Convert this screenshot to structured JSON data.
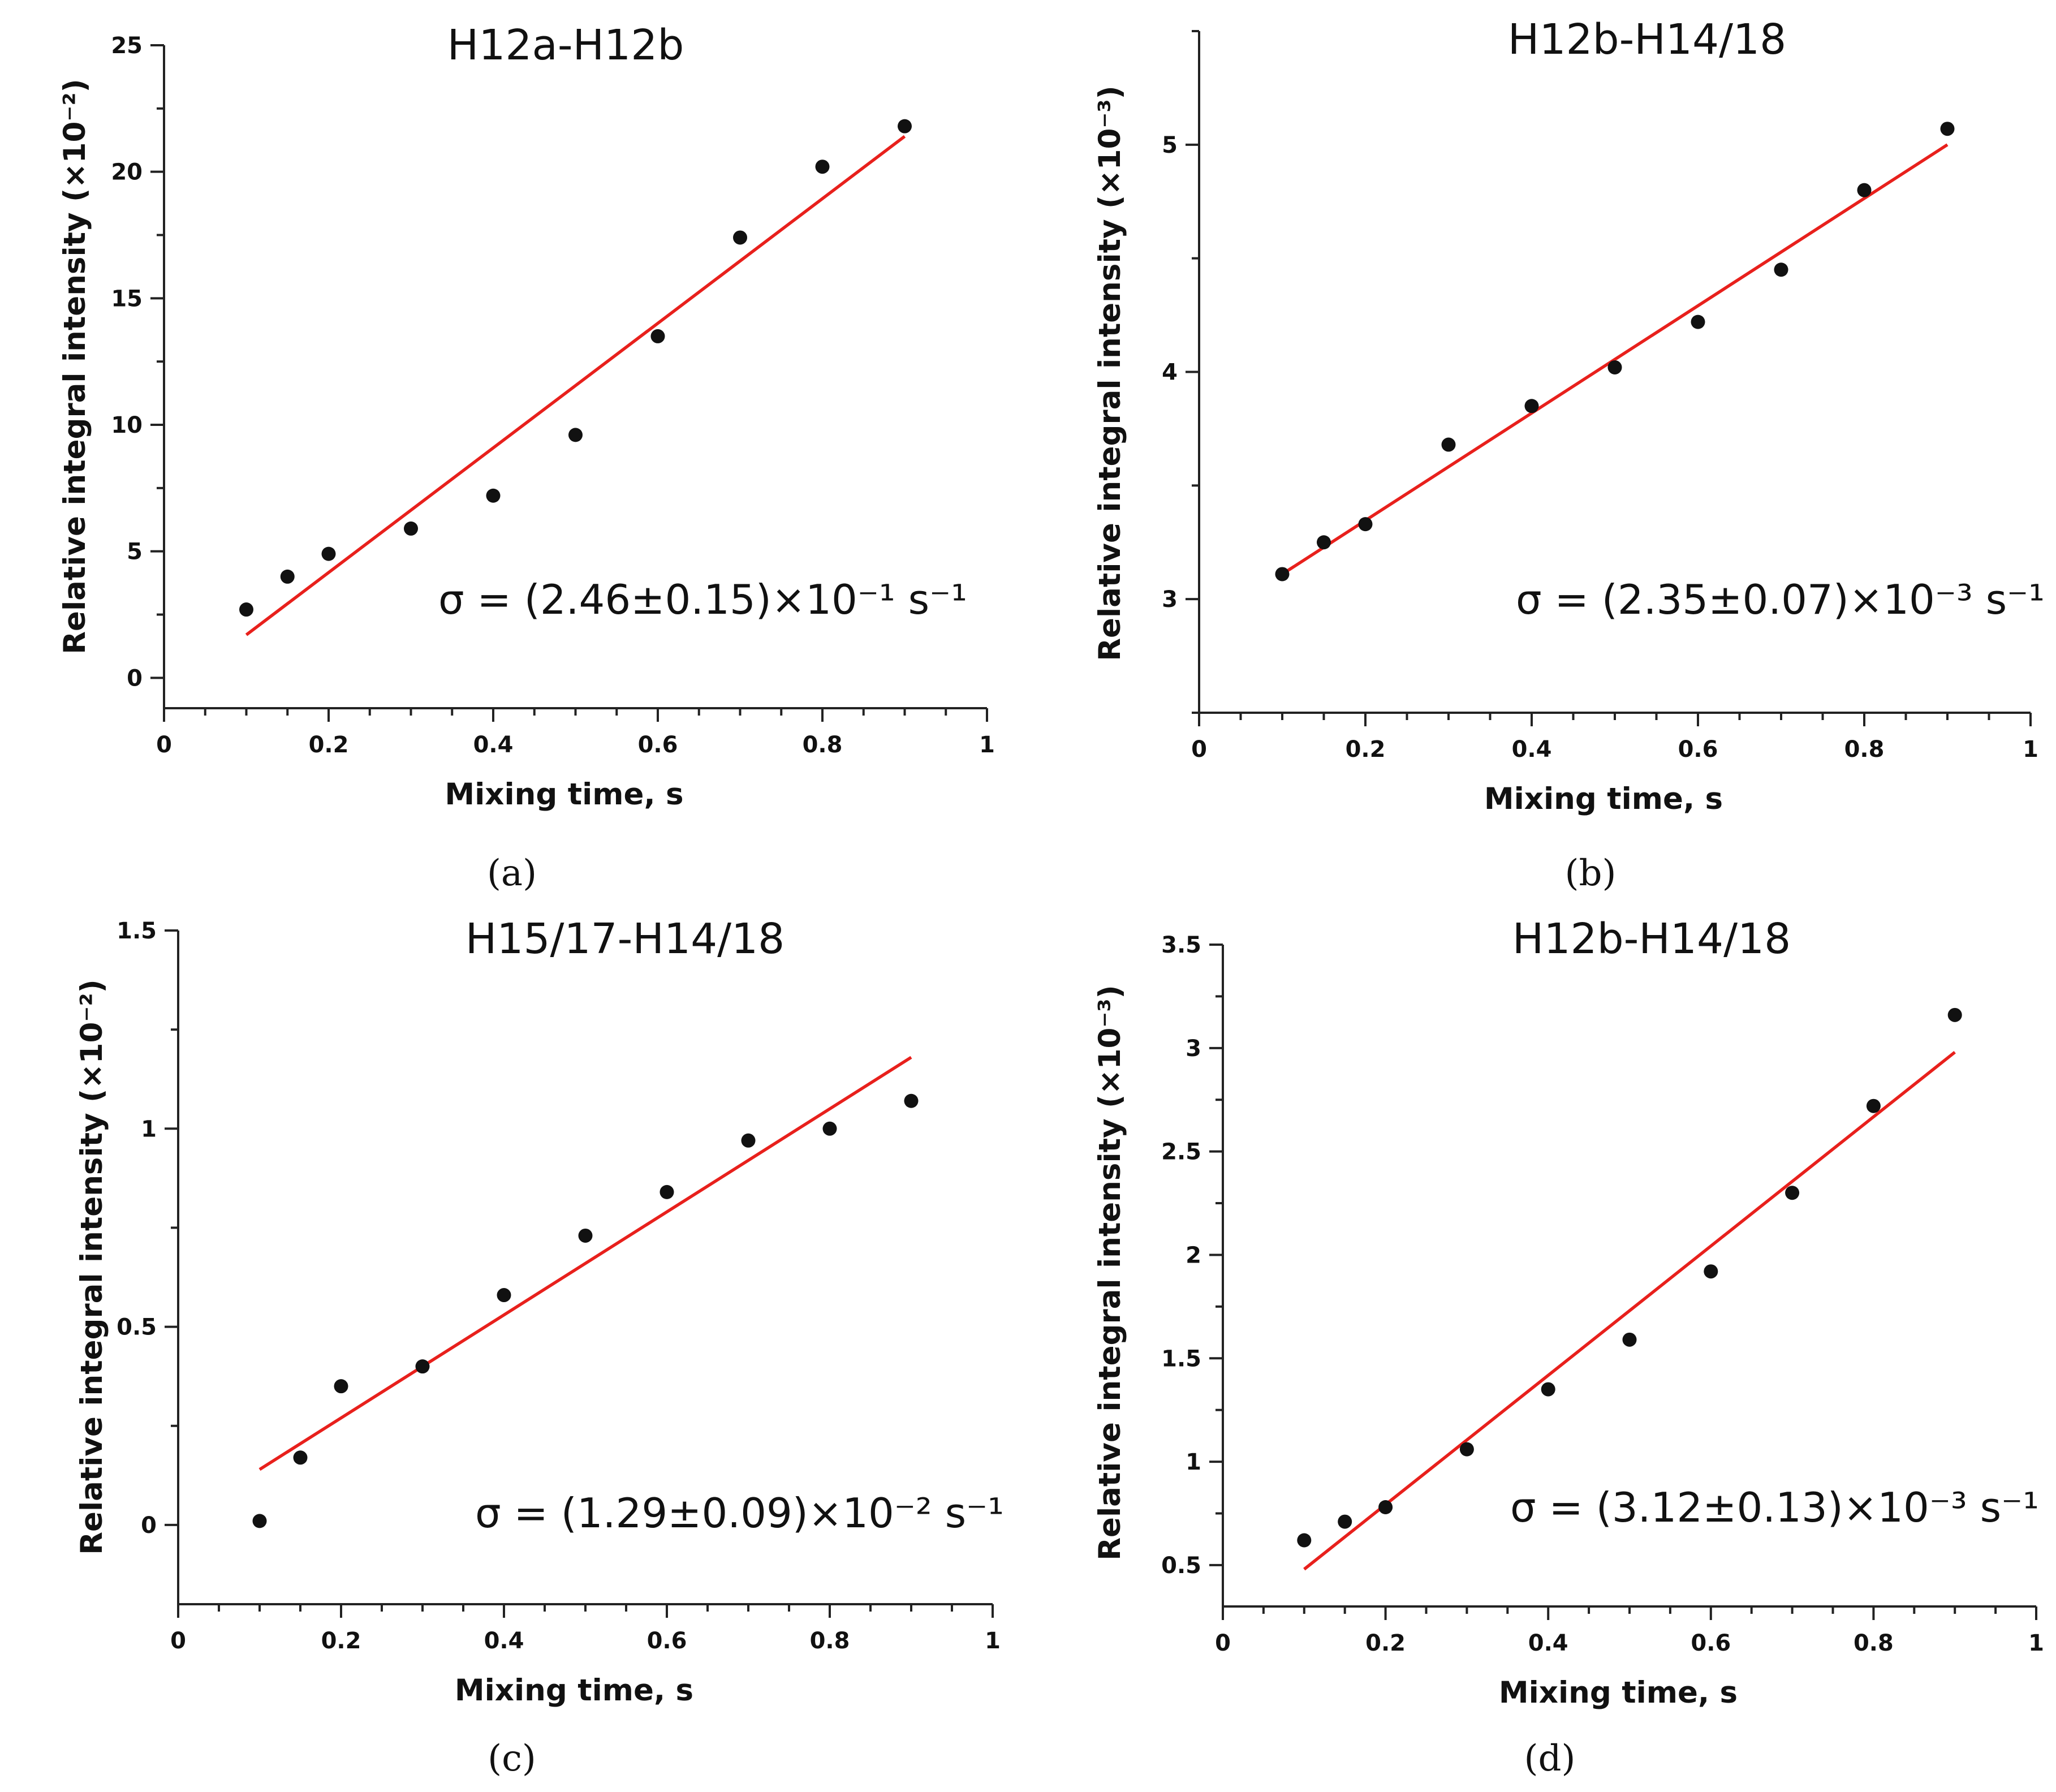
{
  "chart_data": [
    {
      "type": "scatter",
      "panel_label": "(a)",
      "title": "H12a-H12b",
      "xlabel": "Mixing time, s",
      "ylabel": "Relative integral intensity (×10⁻²)",
      "xlim": [
        0,
        1
      ],
      "ylim": [
        -1.2,
        25
      ],
      "xticks": [
        0,
        0.2,
        0.4,
        0.6,
        0.8,
        1
      ],
      "xtick_labels": [
        "0",
        "0.2",
        "0.4",
        "0.6",
        "0.8",
        "1"
      ],
      "yticks": [
        0,
        5,
        10,
        15,
        20,
        25
      ],
      "ytick_labels": [
        "0",
        "5",
        "10",
        "15",
        "20",
        "25"
      ],
      "x": [
        0.1,
        0.15,
        0.2,
        0.3,
        0.4,
        0.5,
        0.6,
        0.7,
        0.8,
        0.9
      ],
      "y": [
        2.7,
        4.0,
        4.9,
        5.9,
        7.2,
        9.6,
        13.5,
        17.4,
        20.2,
        21.8
      ],
      "fit_line": {
        "x": [
          0.1,
          0.9
        ],
        "y": [
          1.7,
          21.4
        ]
      },
      "annotation": "σ = (2.46±0.15)×10⁻¹ s⁻¹",
      "colors": {
        "points": "#111111",
        "fit": "#e8201c"
      }
    },
    {
      "type": "scatter",
      "panel_label": "(b)",
      "title": "H12b-H14/18",
      "xlabel": "Mixing time, s",
      "ylabel": "Relative integral intensity (×10⁻³)",
      "xlim": [
        0,
        1
      ],
      "ylim": [
        2.5,
        5.5
      ],
      "xticks": [
        0,
        0.2,
        0.4,
        0.6,
        0.8,
        1
      ],
      "xtick_labels": [
        "0",
        "0.2",
        "0.4",
        "0.6",
        "0.8",
        "1"
      ],
      "yticks": [
        3,
        4,
        5
      ],
      "ytick_labels": [
        "3",
        "4",
        "5"
      ],
      "x": [
        0.1,
        0.15,
        0.2,
        0.3,
        0.4,
        0.5,
        0.6,
        0.7,
        0.8,
        0.9
      ],
      "y": [
        3.11,
        3.25,
        3.33,
        3.68,
        3.85,
        4.02,
        4.22,
        4.45,
        4.8,
        5.07
      ],
      "fit_line": {
        "x": [
          0.1,
          0.9
        ],
        "y": [
          3.11,
          5.0
        ]
      },
      "annotation": "σ = (2.35±0.07)×10⁻³ s⁻¹",
      "colors": {
        "points": "#111111",
        "fit": "#e8201c"
      }
    },
    {
      "type": "scatter",
      "panel_label": "(c)",
      "title": "H15/17-H14/18",
      "xlabel": "Mixing time, s",
      "ylabel": "Relative integral intensity (×10⁻²)",
      "xlim": [
        0,
        1
      ],
      "ylim": [
        -0.2,
        1.5
      ],
      "xticks": [
        0,
        0.2,
        0.4,
        0.6,
        0.8,
        1
      ],
      "xtick_labels": [
        "0",
        "0.2",
        "0.4",
        "0.6",
        "0.8",
        "1"
      ],
      "yticks": [
        0,
        0.5,
        1,
        1.5
      ],
      "ytick_labels": [
        "0",
        "0.5",
        "1",
        "1.5"
      ],
      "x": [
        0.1,
        0.15,
        0.2,
        0.3,
        0.4,
        0.5,
        0.6,
        0.7,
        0.8,
        0.9
      ],
      "y": [
        0.01,
        0.17,
        0.35,
        0.4,
        0.58,
        0.73,
        0.84,
        0.97,
        1.0,
        1.07
      ],
      "fit_line": {
        "x": [
          0.1,
          0.9
        ],
        "y": [
          0.14,
          1.18
        ]
      },
      "annotation": "σ = (1.29±0.09)×10⁻² s⁻¹",
      "colors": {
        "points": "#111111",
        "fit": "#e8201c"
      }
    },
    {
      "type": "scatter",
      "panel_label": "(d)",
      "title": "H12b-H14/18",
      "xlabel": "Mixing time, s",
      "ylabel": "Relative integral intensity (×10⁻³)",
      "xlim": [
        0,
        1
      ],
      "ylim": [
        0.3,
        3.5
      ],
      "xticks": [
        0,
        0.2,
        0.4,
        0.6,
        0.8,
        1
      ],
      "xtick_labels": [
        "0",
        "0.2",
        "0.4",
        "0.6",
        "0.8",
        "1"
      ],
      "yticks": [
        0.5,
        1,
        1.5,
        2,
        2.5,
        3,
        3.5
      ],
      "ytick_labels": [
        "0.5",
        "1",
        "1.5",
        "2",
        "2.5",
        "3",
        "3.5"
      ],
      "x": [
        0.1,
        0.15,
        0.2,
        0.3,
        0.4,
        0.5,
        0.6,
        0.7,
        0.8,
        0.9
      ],
      "y": [
        0.62,
        0.71,
        0.78,
        1.06,
        1.35,
        1.59,
        1.92,
        2.3,
        2.72,
        3.16
      ],
      "fit_line": {
        "x": [
          0.1,
          0.9
        ],
        "y": [
          0.48,
          2.98
        ]
      },
      "annotation": "σ = (3.12±0.13)×10⁻³ s⁻¹",
      "colors": {
        "points": "#111111",
        "fit": "#e8201c"
      }
    }
  ]
}
